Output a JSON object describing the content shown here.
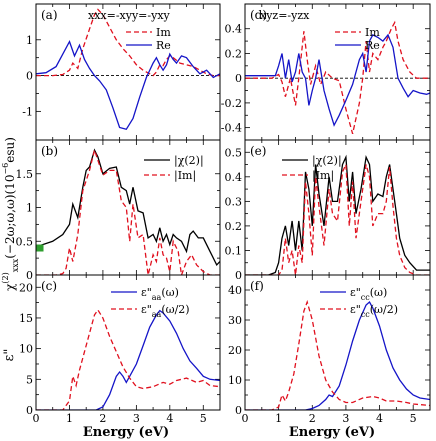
{
  "figure": {
    "ylabel_main": "χ",
    "ylabel_sup": "(2)",
    "ylabel_sub": "xxx",
    "ylabel_rest": "(−2ω;ω,ω)(10",
    "ylabel_exp": "−6",
    "ylabel_unit": "esu)",
    "ylabel_eps": "ε\"",
    "xlabel": "Energy (eV)",
    "xticks": [
      "0",
      "1",
      "2",
      "3",
      "4",
      "5"
    ]
  },
  "colors": {
    "im": "#e0101e",
    "re": "#1515c8",
    "abs": "#000000",
    "marker": "#2e9e2e"
  },
  "chart_data": [
    {
      "id": "a",
      "type": "line",
      "panel_label": "(a)",
      "annotation": "xxx=-xyy=-yxy",
      "xlim": [
        0,
        5.5
      ],
      "ylim": [
        -1.8,
        2.0
      ],
      "yticks": [
        "-1",
        "0",
        "1"
      ],
      "ytick_values": [
        -1,
        0,
        1
      ],
      "zero_line": true,
      "legend_position": "top-right",
      "series": [
        {
          "name": "Im",
          "style": "dashed",
          "color_key": "im",
          "x": [
            0,
            0.5,
            0.8,
            1.0,
            1.1,
            1.25,
            1.4,
            1.6,
            1.75,
            1.85,
            2.0,
            2.2,
            2.4,
            2.6,
            2.8,
            3.0,
            3.2,
            3.4,
            3.5,
            3.6,
            3.7,
            3.8,
            3.9,
            4.0,
            4.1,
            4.3,
            4.5,
            4.7,
            4.9,
            5.1,
            5.3,
            5.5
          ],
          "y": [
            0,
            0,
            0.03,
            0.15,
            0.35,
            0.2,
            0.75,
            1.3,
            1.7,
            1.85,
            1.7,
            1.35,
            1.0,
            0.75,
            0.55,
            0.3,
            0.15,
            0.05,
            0.0,
            0.1,
            0.3,
            0.28,
            0.45,
            0.55,
            0.5,
            0.35,
            0.3,
            0.25,
            0.15,
            0.05,
            0.0,
            0.0
          ]
        },
        {
          "name": "Re",
          "style": "solid",
          "color_key": "re",
          "x": [
            0,
            0.3,
            0.6,
            0.8,
            1.0,
            1.15,
            1.3,
            1.45,
            1.6,
            1.75,
            1.9,
            2.1,
            2.3,
            2.5,
            2.7,
            2.9,
            3.1,
            3.3,
            3.5,
            3.6,
            3.7,
            3.8,
            3.9,
            4.0,
            4.1,
            4.2,
            4.35,
            4.5,
            4.7,
            4.9,
            5.1,
            5.3,
            5.5
          ],
          "y": [
            0.05,
            0.08,
            0.25,
            0.6,
            0.95,
            0.55,
            0.85,
            0.45,
            0.2,
            0.0,
            -0.15,
            -0.4,
            -0.9,
            -1.45,
            -1.5,
            -1.2,
            -0.6,
            -0.05,
            0.35,
            0.5,
            0.3,
            0.15,
            0.3,
            0.6,
            0.45,
            0.35,
            0.55,
            0.5,
            0.25,
            0.05,
            0.15,
            -0.05,
            0.05
          ]
        }
      ]
    },
    {
      "id": "b",
      "type": "line",
      "panel_label": "(b)",
      "xlim": [
        0,
        5.5
      ],
      "ylim": [
        0,
        2.0
      ],
      "yticks": [
        "0",
        "0.5",
        "1",
        "1.5"
      ],
      "ytick_values": [
        0,
        0.5,
        1,
        1.5
      ],
      "legend_position": "top-right",
      "marker": {
        "x": 0.12,
        "y": 0.4
      },
      "series": [
        {
          "name": "|χ(2)|",
          "style": "solid",
          "color_key": "abs",
          "x": [
            0,
            0.2,
            0.5,
            0.8,
            1.0,
            1.1,
            1.25,
            1.4,
            1.5,
            1.6,
            1.75,
            1.85,
            2.0,
            2.2,
            2.4,
            2.55,
            2.7,
            2.8,
            2.9,
            3.05,
            3.2,
            3.35,
            3.5,
            3.6,
            3.7,
            3.8,
            3.9,
            4.0,
            4.1,
            4.2,
            4.35,
            4.5,
            4.6,
            4.7,
            4.85,
            5.0,
            5.2,
            5.4,
            5.5
          ],
          "y": [
            0.42,
            0.45,
            0.5,
            0.6,
            0.75,
            1.05,
            0.85,
            1.3,
            1.55,
            1.6,
            1.85,
            1.75,
            1.5,
            1.58,
            1.6,
            1.3,
            1.25,
            1.05,
            1.3,
            0.95,
            0.92,
            0.55,
            0.6,
            0.5,
            0.7,
            0.5,
            0.6,
            0.45,
            0.6,
            0.55,
            0.5,
            0.35,
            0.6,
            0.65,
            0.55,
            0.55,
            0.35,
            0.15,
            0.2
          ]
        },
        {
          "name": "|Im|",
          "style": "dashed",
          "color_key": "im",
          "x": [
            0,
            0.6,
            0.8,
            0.9,
            1.0,
            1.1,
            1.25,
            1.4,
            1.5,
            1.6,
            1.75,
            1.85,
            2.0,
            2.2,
            2.4,
            2.55,
            2.7,
            2.8,
            2.9,
            3.05,
            3.2,
            3.35,
            3.5,
            3.6,
            3.7,
            3.8,
            3.9,
            4.0,
            4.1,
            4.25,
            4.35,
            4.5,
            4.65,
            4.8,
            5.0,
            5.2,
            5.4,
            5.5
          ],
          "y": [
            0,
            0,
            0.02,
            0.1,
            0.4,
            0.2,
            0.6,
            1.25,
            1.4,
            1.55,
            1.85,
            1.7,
            1.48,
            1.55,
            1.55,
            1.1,
            1.0,
            0.5,
            1.05,
            0.55,
            0.6,
            0.0,
            0.3,
            0.2,
            0.55,
            0.3,
            0.25,
            0.05,
            0.5,
            0.35,
            0.0,
            0.2,
            0.3,
            0.15,
            0.05,
            0.0,
            0.0,
            0.0
          ]
        }
      ]
    },
    {
      "id": "c",
      "type": "line",
      "panel_label": "(c)",
      "xlim": [
        0,
        5.5
      ],
      "ylim": [
        0,
        22
      ],
      "yticks": [
        "0",
        "5",
        "10",
        "15",
        "20"
      ],
      "ytick_values": [
        0,
        5,
        10,
        15,
        20
      ],
      "legend_position": "top-right",
      "series": [
        {
          "name_main": "ε\"",
          "name_sub": "aa",
          "name_arg": "(ω)",
          "style": "solid",
          "color_key": "re",
          "x": [
            0,
            1.8,
            2.0,
            2.2,
            2.4,
            2.5,
            2.6,
            2.7,
            2.8,
            3.0,
            3.2,
            3.4,
            3.6,
            3.7,
            3.8,
            4.0,
            4.2,
            4.4,
            4.6,
            4.8,
            5.0,
            5.2,
            5.5
          ],
          "y": [
            0,
            0,
            0.5,
            2.5,
            5.5,
            6.2,
            5.5,
            4.5,
            5.5,
            7.5,
            10.5,
            13.5,
            15.5,
            16.2,
            15.8,
            14.5,
            12.5,
            10.0,
            8.0,
            6.8,
            5.5,
            5.0,
            4.8
          ]
        },
        {
          "name_main": "ε\"",
          "name_sub": "aa",
          "name_arg": "(ω/2)",
          "style": "dashed",
          "color_key": "im",
          "x": [
            0,
            0.8,
            1.0,
            1.1,
            1.2,
            1.3,
            1.45,
            1.6,
            1.75,
            1.85,
            2.0,
            2.2,
            2.4,
            2.6,
            2.8,
            3.0,
            3.2,
            3.5,
            3.8,
            4.0,
            4.2,
            4.5,
            4.8,
            5.0,
            5.2,
            5.5
          ],
          "y": [
            0,
            0,
            1.5,
            5.5,
            4.0,
            6.5,
            9.5,
            12.5,
            15.5,
            16.3,
            15.0,
            12.0,
            9.5,
            7.0,
            5.2,
            3.8,
            3.5,
            3.8,
            4.5,
            4.2,
            4.8,
            5.2,
            4.5,
            4.8,
            4.0,
            3.8
          ]
        }
      ]
    },
    {
      "id": "d",
      "type": "line",
      "panel_label": "(d)",
      "annotation": "xyz=-yzx",
      "xlim": [
        0,
        5.5
      ],
      "ylim": [
        -0.5,
        0.6
      ],
      "yticks": [
        "-0.4",
        "-0.2",
        "0",
        "0.2",
        "0.4"
      ],
      "ytick_values": [
        -0.4,
        -0.2,
        0,
        0.2,
        0.4
      ],
      "zero_line": true,
      "legend_position": "top-right",
      "series": [
        {
          "name": "Im",
          "style": "dashed",
          "color_key": "im",
          "x": [
            0,
            0.8,
            1.0,
            1.1,
            1.2,
            1.35,
            1.5,
            1.6,
            1.75,
            1.85,
            1.95,
            2.1,
            2.25,
            2.4,
            2.6,
            2.8,
            3.0,
            3.2,
            3.4,
            3.5,
            3.6,
            3.7,
            3.8,
            3.95,
            4.1,
            4.2,
            4.35,
            4.45,
            4.55,
            4.7,
            4.9,
            5.1,
            5.3,
            5.5
          ],
          "y": [
            0,
            0,
            0.03,
            -0.03,
            -0.15,
            0.0,
            -0.22,
            0.0,
            0.38,
            0.15,
            -0.05,
            0.1,
            -0.05,
            0.05,
            0.0,
            -0.02,
            -0.25,
            -0.45,
            -0.2,
            0.0,
            0.3,
            0.05,
            0.2,
            0.15,
            0.25,
            0.3,
            0.4,
            0.45,
            0.3,
            0.15,
            0.05,
            0.0,
            0.0,
            0.0
          ]
        },
        {
          "name": "Re",
          "style": "solid",
          "color_key": "re",
          "x": [
            0,
            0.9,
            1.0,
            1.1,
            1.2,
            1.3,
            1.4,
            1.5,
            1.6,
            1.7,
            1.8,
            1.9,
            2.0,
            2.1,
            2.2,
            2.35,
            2.5,
            2.65,
            2.8,
            3.0,
            3.2,
            3.4,
            3.5,
            3.6,
            3.7,
            3.8,
            3.95,
            4.1,
            4.25,
            4.4,
            4.55,
            4.7,
            4.85,
            5.0,
            5.2,
            5.4,
            5.5
          ],
          "y": [
            0.02,
            0.02,
            0.1,
            0.2,
            0.0,
            0.15,
            -0.03,
            0.05,
            0.2,
            0.05,
            0.0,
            -0.22,
            -0.1,
            0.0,
            0.15,
            -0.1,
            -0.25,
            -0.38,
            -0.3,
            -0.18,
            -0.05,
            0.15,
            0.2,
            0.05,
            0.3,
            0.35,
            0.33,
            0.3,
            0.35,
            0.25,
            0.0,
            -0.08,
            -0.15,
            -0.1,
            -0.12,
            -0.13,
            -0.12
          ]
        }
      ]
    },
    {
      "id": "e",
      "type": "line",
      "panel_label": "(e)",
      "xlim": [
        0,
        5.5
      ],
      "ylim": [
        0,
        0.55
      ],
      "yticks": [
        "0",
        "0.1",
        "0.2",
        "0.3",
        "0.4",
        "0.5"
      ],
      "ytick_values": [
        0,
        0.1,
        0.2,
        0.3,
        0.4,
        0.5
      ],
      "legend_position": "top-left",
      "series": [
        {
          "name": "|χ(2)|",
          "style": "solid",
          "color_key": "abs",
          "x": [
            0,
            0.7,
            0.9,
            1.0,
            1.1,
            1.2,
            1.3,
            1.4,
            1.5,
            1.6,
            1.7,
            1.8,
            1.9,
            2.0,
            2.1,
            2.2,
            2.35,
            2.5,
            2.6,
            2.75,
            2.9,
            3.0,
            3.1,
            3.2,
            3.3,
            3.45,
            3.6,
            3.7,
            3.8,
            3.95,
            4.1,
            4.2,
            4.3,
            4.4,
            4.5,
            4.6,
            4.75,
            4.9,
            5.1,
            5.3,
            5.5
          ],
          "y": [
            0,
            0,
            0.01,
            0.05,
            0.15,
            0.2,
            0.12,
            0.22,
            0.1,
            0.22,
            0.1,
            0.42,
            0.35,
            0.2,
            0.45,
            0.33,
            0.2,
            0.4,
            0.3,
            0.3,
            0.45,
            0.48,
            0.3,
            0.42,
            0.25,
            0.35,
            0.48,
            0.45,
            0.3,
            0.33,
            0.32,
            0.4,
            0.45,
            0.35,
            0.25,
            0.15,
            0.08,
            0.05,
            0.02,
            0.02,
            0.02
          ]
        },
        {
          "name": "|Im|",
          "style": "dashed",
          "color_key": "im",
          "x": [
            0,
            1.0,
            1.1,
            1.2,
            1.3,
            1.4,
            1.5,
            1.6,
            1.7,
            1.8,
            1.9,
            2.0,
            2.1,
            2.2,
            2.35,
            2.5,
            2.6,
            2.75,
            2.9,
            3.0,
            3.1,
            3.2,
            3.3,
            3.45,
            3.6,
            3.7,
            3.8,
            3.95,
            4.1,
            4.2,
            4.3,
            4.4,
            4.5,
            4.6,
            4.75,
            4.9,
            5.1,
            5.5
          ],
          "y": [
            0,
            0,
            0.02,
            0.15,
            0.05,
            0.1,
            0.0,
            0.12,
            0.05,
            0.38,
            0.25,
            0.08,
            0.4,
            0.28,
            0.12,
            0.35,
            0.25,
            0.22,
            0.42,
            0.45,
            0.2,
            0.38,
            0.15,
            0.3,
            0.45,
            0.4,
            0.2,
            0.25,
            0.25,
            0.3,
            0.44,
            0.28,
            0.15,
            0.08,
            0.03,
            0.01,
            0.0,
            0.0
          ]
        }
      ]
    },
    {
      "id": "f",
      "type": "line",
      "panel_label": "(f)",
      "xlim": [
        0,
        5.5
      ],
      "ylim": [
        0,
        45
      ],
      "yticks": [
        "0",
        "10",
        "20",
        "30",
        "40"
      ],
      "ytick_values": [
        0,
        10,
        20,
        30,
        40
      ],
      "legend_position": "top-right",
      "series": [
        {
          "name_main": "ε\"",
          "name_sub": "cc",
          "name_arg": "(ω)",
          "style": "solid",
          "color_key": "re",
          "x": [
            0,
            1.8,
            2.0,
            2.2,
            2.4,
            2.5,
            2.6,
            2.8,
            3.0,
            3.2,
            3.4,
            3.6,
            3.7,
            3.8,
            4.0,
            4.2,
            4.4,
            4.6,
            4.8,
            5.0,
            5.2,
            5.5
          ],
          "y": [
            0,
            0,
            0.5,
            1.5,
            3.5,
            5.0,
            4.5,
            8.0,
            15.0,
            23.0,
            30.0,
            35.0,
            36.0,
            34.0,
            28.0,
            20.0,
            14.0,
            10.0,
            7.0,
            5.0,
            4.0,
            3.5
          ]
        },
        {
          "name_main": "ε\"",
          "name_sub": "cc",
          "name_arg": "(ω/2)",
          "style": "dashed",
          "color_key": "im",
          "x": [
            0,
            0.8,
            1.0,
            1.1,
            1.2,
            1.3,
            1.45,
            1.6,
            1.75,
            1.85,
            2.0,
            2.2,
            2.4,
            2.6,
            2.8,
            3.0,
            3.2,
            3.5,
            3.8,
            4.0,
            4.2,
            4.5,
            4.8,
            5.0,
            5.5
          ],
          "y": [
            0,
            0,
            1.0,
            5.0,
            3.0,
            6.0,
            12.0,
            22.0,
            33.0,
            36.0,
            30.0,
            18.0,
            10.0,
            6.0,
            3.5,
            2.5,
            2.5,
            4.0,
            4.5,
            4.0,
            3.0,
            3.0,
            2.5,
            2.0,
            1.5
          ]
        }
      ]
    }
  ]
}
